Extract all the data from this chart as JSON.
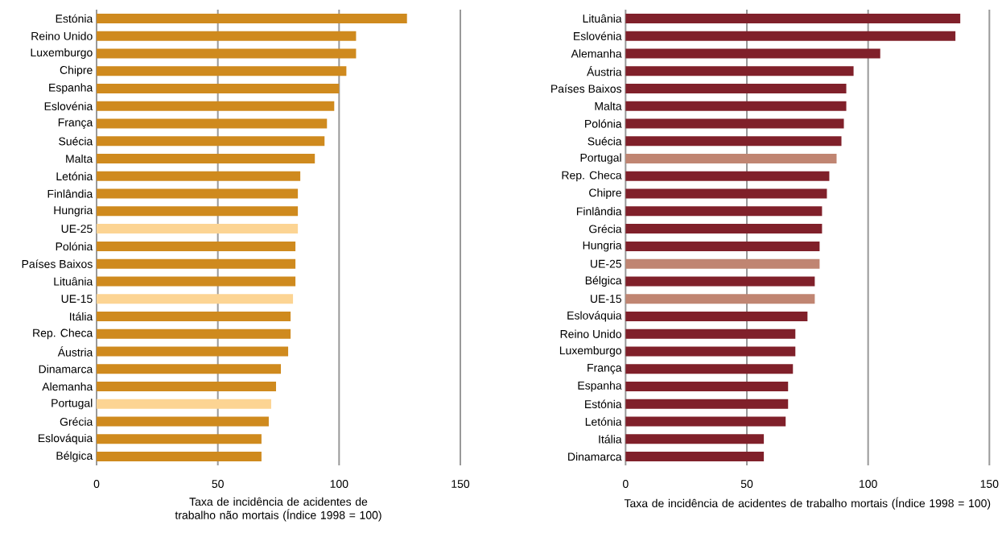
{
  "chart_data": [
    {
      "type": "bar",
      "orientation": "horizontal",
      "xlabel": "Taxa de incidência de acidentes de trabalho não mortais (Índice 1998 = 100)",
      "categories": [
        "Estónia",
        "Reino Unido",
        "Luxemburgo",
        "Chipre",
        "Espanha",
        "Eslovénia",
        "França",
        "Suécia",
        "Malta",
        "Letónia",
        "Finlândia",
        "Hungria",
        "UE-25",
        "Polónia",
        "Países Baixos",
        "Lituânia",
        "UE-15",
        "Itália",
        "Rep. Checa",
        "Áustria",
        "Dinamarca",
        "Alemanha",
        "Portugal",
        "Grécia",
        "Eslováquia",
        "Bélgica"
      ],
      "values": [
        128,
        107,
        107,
        103,
        100,
        98,
        95,
        94,
        90,
        84,
        83,
        83,
        83,
        82,
        82,
        82,
        81,
        80,
        80,
        79,
        76,
        74,
        72,
        71,
        68,
        68
      ],
      "colors": [
        "#cf8a1e",
        "#cf8a1e",
        "#cf8a1e",
        "#cf8a1e",
        "#cf8a1e",
        "#cf8a1e",
        "#cf8a1e",
        "#cf8a1e",
        "#cf8a1e",
        "#cf8a1e",
        "#cf8a1e",
        "#cf8a1e",
        "#fcd493",
        "#cf8a1e",
        "#cf8a1e",
        "#cf8a1e",
        "#fcd493",
        "#cf8a1e",
        "#cf8a1e",
        "#cf8a1e",
        "#cf8a1e",
        "#cf8a1e",
        "#fcd493",
        "#cf8a1e",
        "#cf8a1e",
        "#cf8a1e"
      ],
      "xlim": [
        0,
        150
      ],
      "xticks": [
        0,
        50,
        100,
        150
      ],
      "grid": "x"
    },
    {
      "type": "bar",
      "orientation": "horizontal",
      "xlabel": "Taxa de incidência de acidentes de trabalho mortais (Índice 1998 = 100)",
      "categories": [
        "Lituânia",
        "Eslovénia",
        "Alemanha",
        "Áustria",
        "Países Baixos",
        "Malta",
        "Polónia",
        "Suécia",
        "Portugal",
        "Rep. Checa",
        "Chipre",
        "Finlândia",
        "Grécia",
        "Hungria",
        "UE-25",
        "Bélgica",
        "UE-15",
        "Eslováquia",
        "Reino Unido",
        "Luxemburgo",
        "França",
        "Espanha",
        "Estónia",
        "Letónia",
        "Itália",
        "Dinamarca"
      ],
      "values": [
        138,
        136,
        105,
        94,
        91,
        91,
        90,
        89,
        87,
        84,
        83,
        81,
        81,
        80,
        80,
        78,
        78,
        75,
        70,
        70,
        69,
        67,
        67,
        66,
        57,
        57
      ],
      "colors": [
        "#80202a",
        "#80202a",
        "#80202a",
        "#80202a",
        "#80202a",
        "#80202a",
        "#80202a",
        "#80202a",
        "#c08572",
        "#80202a",
        "#80202a",
        "#80202a",
        "#80202a",
        "#80202a",
        "#c08572",
        "#80202a",
        "#c08572",
        "#80202a",
        "#80202a",
        "#80202a",
        "#80202a",
        "#80202a",
        "#80202a",
        "#80202a",
        "#80202a",
        "#80202a"
      ],
      "xlim": [
        0,
        150
      ],
      "xticks": [
        0,
        50,
        100,
        150
      ],
      "grid": "x"
    }
  ]
}
